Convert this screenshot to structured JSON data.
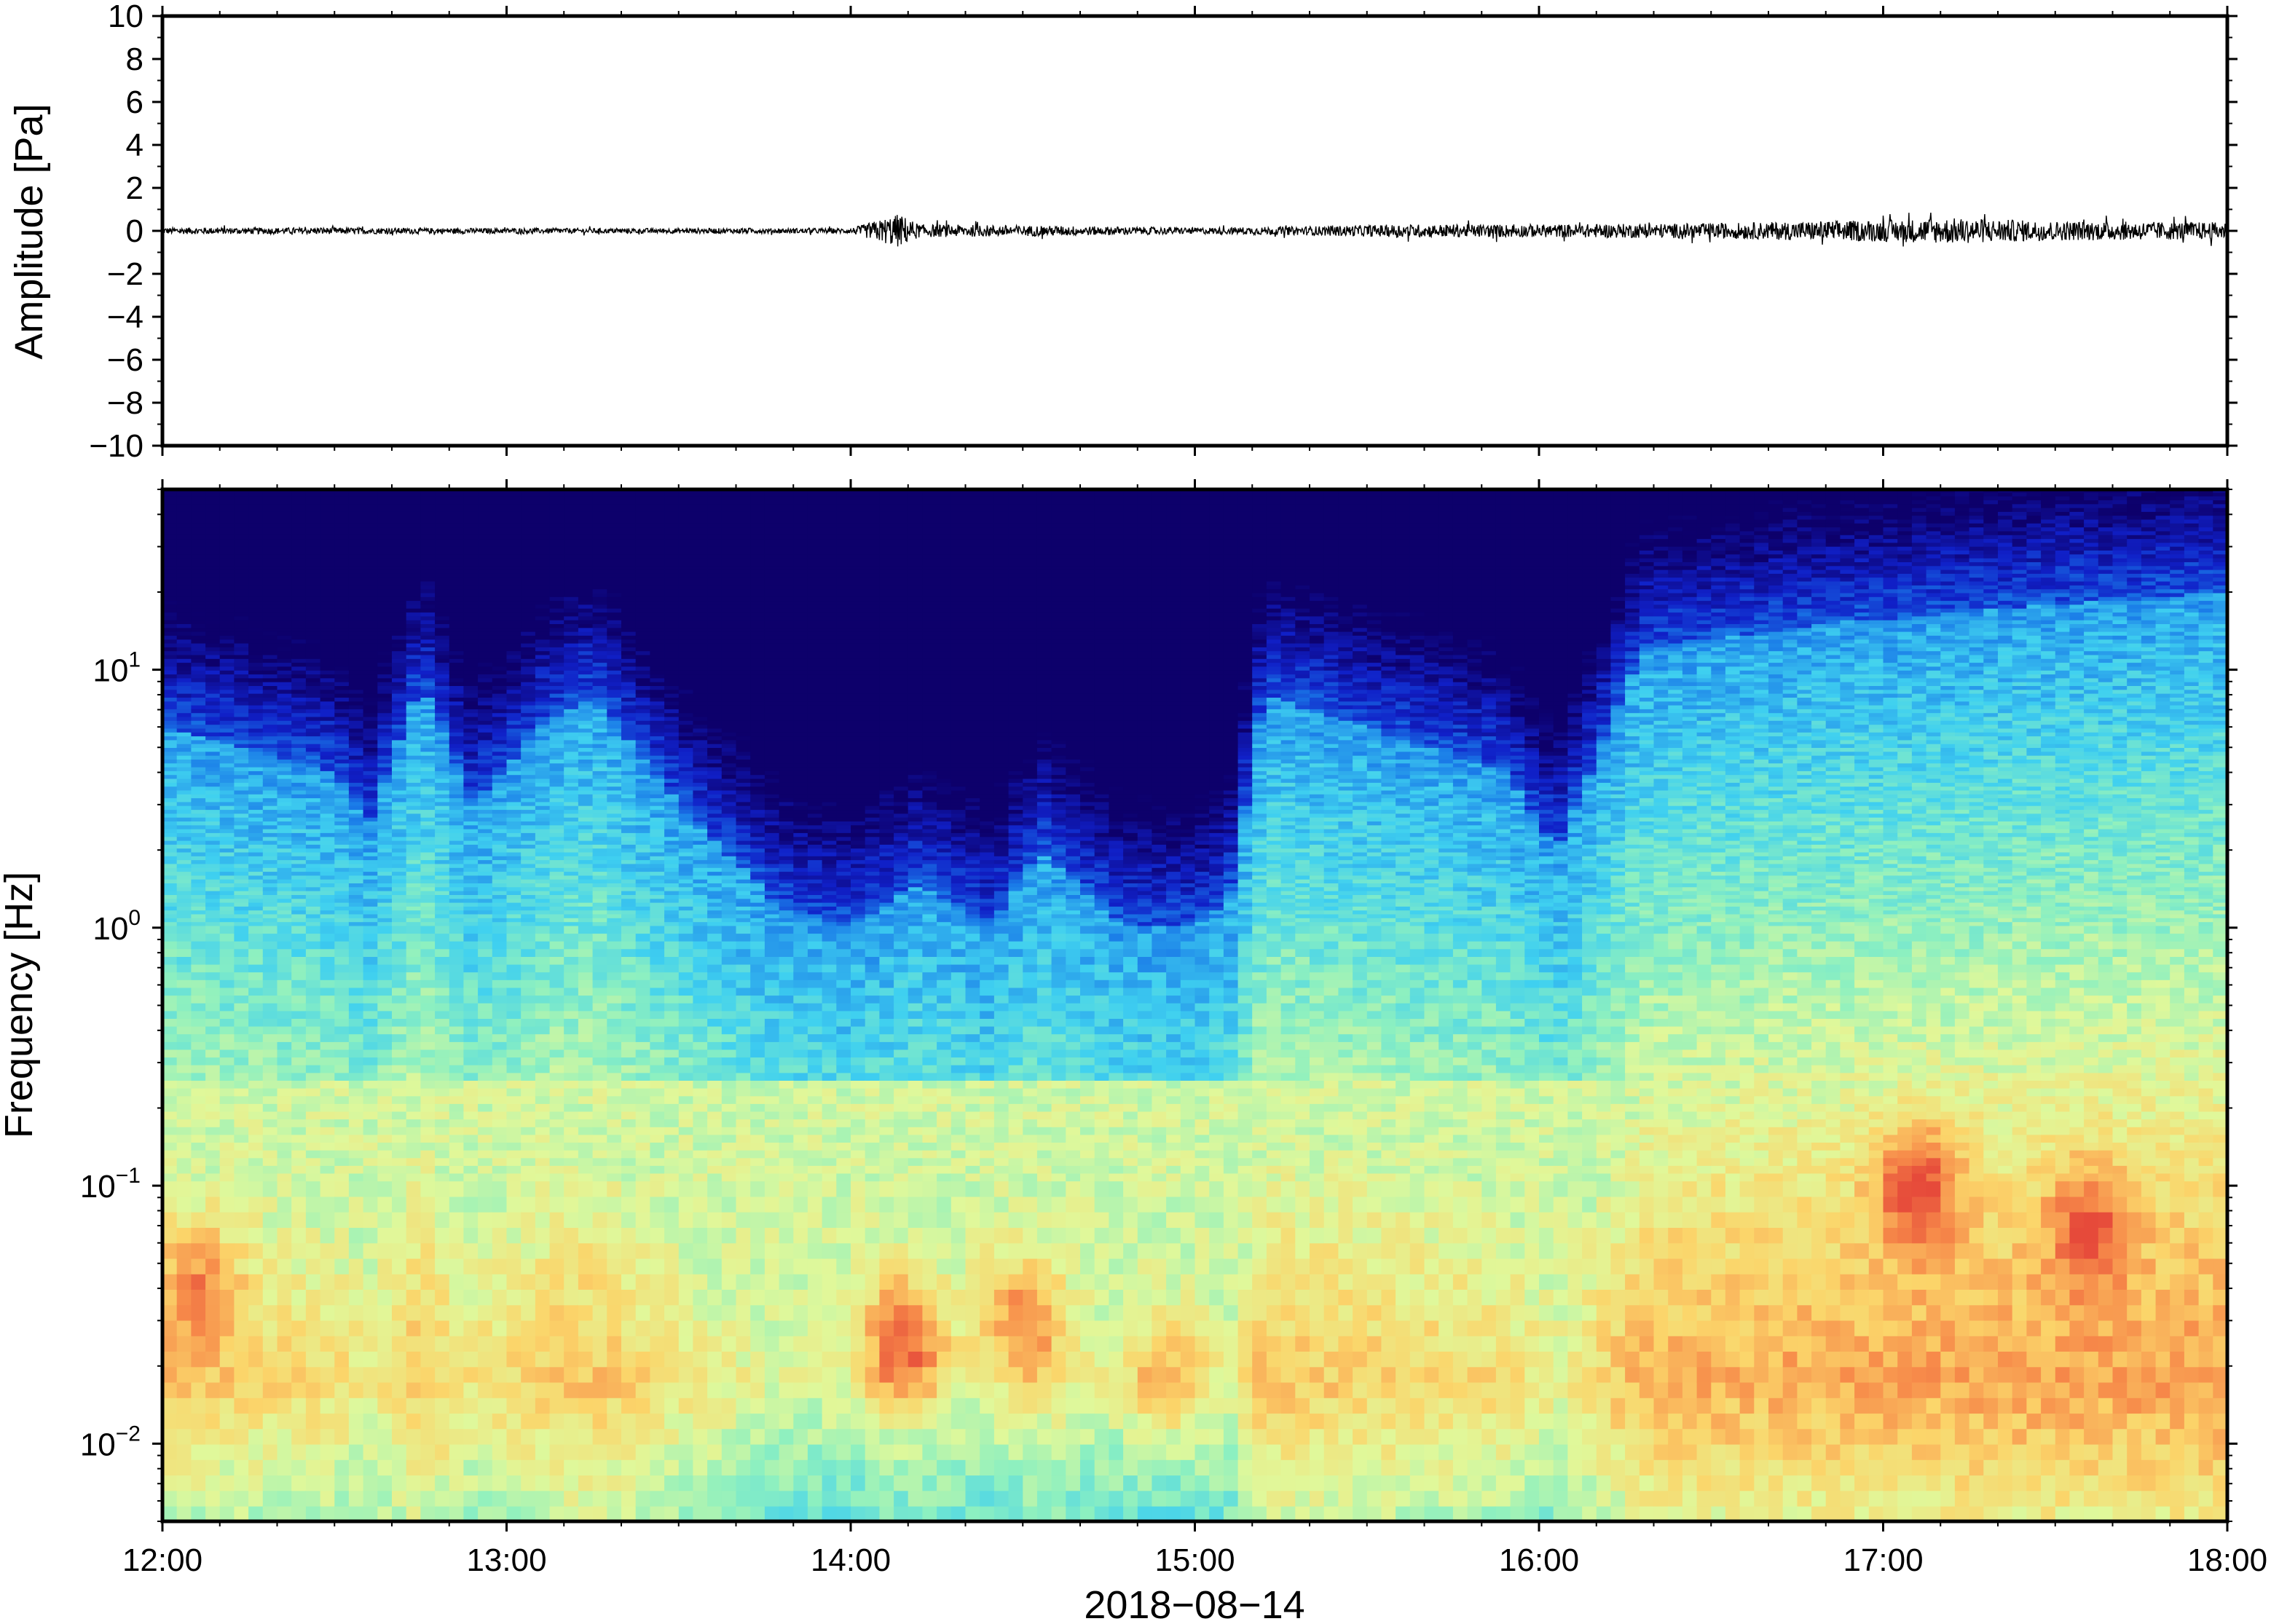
{
  "figure": {
    "xlabel": "2018−08−14"
  },
  "chart_data": [
    {
      "type": "line",
      "panel": "waveform",
      "ylabel": "Amplitude [Pa]",
      "ylim": [
        -10,
        10
      ],
      "yticks": [
        10,
        8,
        6,
        4,
        2,
        0,
        -2,
        -4,
        -6,
        -8,
        -10
      ],
      "ytick_labels": [
        "10",
        "8",
        "6",
        "4",
        "2",
        "0",
        "−2",
        "−4",
        "−6",
        "−8",
        "−10"
      ],
      "xlim": [
        "12:00",
        "18:00"
      ],
      "series": [
        {
          "color": "#000000",
          "envelope": {
            "time_h": [
              12.0,
              12.5,
              13.0,
              13.5,
              14.0,
              14.08,
              14.14,
              14.2,
              14.5,
              15.0,
              15.3,
              15.6,
              16.0,
              16.5,
              16.8,
              17.0,
              17.2,
              17.5,
              18.0
            ],
            "amplitude_pa": [
              0.15,
              0.15,
              0.12,
              0.12,
              0.12,
              0.5,
              0.8,
              0.3,
              0.25,
              0.15,
              0.2,
              0.3,
              0.3,
              0.35,
              0.45,
              0.5,
              0.6,
              0.45,
              0.4
            ]
          }
        }
      ]
    },
    {
      "type": "heatmap",
      "panel": "spectrogram",
      "ylabel": "Frequency [Hz]",
      "yscale": "log",
      "ylim": [
        0.005,
        50
      ],
      "yticks": [
        {
          "base": "10",
          "exp": "1",
          "value": 10
        },
        {
          "base": "10",
          "exp": "0",
          "value": 1
        },
        {
          "base": "10",
          "exp": "−1",
          "value": 0.1
        },
        {
          "base": "10",
          "exp": "−2",
          "value": 0.01
        }
      ],
      "xlim": [
        "12:00",
        "18:00"
      ],
      "xticks": [
        "12:00",
        "13:00",
        "14:00",
        "15:00",
        "16:00",
        "17:00",
        "18:00"
      ],
      "colormap": [
        "#0d006b",
        "#1020c8",
        "#1a7ce8",
        "#3fd0f0",
        "#8df0c0",
        "#e0f89a",
        "#fbd56a",
        "#f78c4a",
        "#e64a3a"
      ],
      "blue_boundary_hz": {
        "time_h": [
          12.0,
          12.5,
          12.6,
          12.75,
          12.9,
          13.1,
          13.25,
          13.5,
          13.8,
          14.0,
          14.2,
          14.4,
          14.55,
          14.8,
          15.0,
          15.1,
          15.2,
          15.5,
          15.9,
          16.05,
          16.3,
          16.8,
          17.5,
          18.0
        ],
        "value": [
          6,
          4,
          2.5,
          9,
          3,
          6,
          8,
          3,
          1.2,
          1,
          1.5,
          1,
          2,
          1,
          1,
          1.3,
          8,
          6,
          4,
          2,
          12,
          15,
          18,
          20
        ]
      },
      "hot_spots": [
        {
          "time_h": 14.15,
          "freq_hz": 0.025,
          "intensity": 1.0
        },
        {
          "time_h": 14.5,
          "freq_hz": 0.03,
          "intensity": 0.8
        },
        {
          "time_h": 14.92,
          "freq_hz": 0.018,
          "intensity": 0.6
        },
        {
          "time_h": 17.1,
          "freq_hz": 0.1,
          "intensity": 0.9
        },
        {
          "time_h": 17.6,
          "freq_hz": 0.07,
          "intensity": 0.7
        },
        {
          "time_h": 12.1,
          "freq_hz": 0.04,
          "intensity": 0.6
        }
      ]
    }
  ]
}
